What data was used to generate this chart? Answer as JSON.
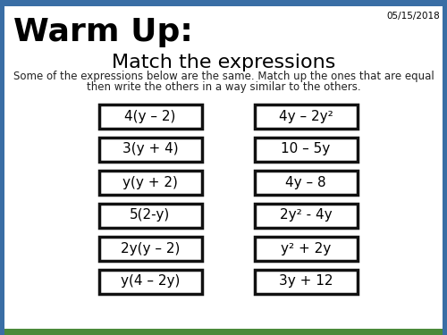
{
  "title": "Warm Up:",
  "subtitle": "Match the expressions",
  "instruction_line1": "Some of the expressions below are the same. Match up the ones that are equal",
  "instruction_line2": "then write the others in a way similar to the others.",
  "date": "05/15/2018",
  "left_expressions": [
    "4(y – 2)",
    "3(y + 4)",
    "y(y + 2)",
    "5(2-y)",
    "2y(y – 2)",
    "y(4 – 2y)"
  ],
  "right_expressions": [
    "4y – 2y²",
    "10 – 5y",
    "4y – 8",
    "2y² - 4y",
    "y² + 2y",
    "3y + 12"
  ],
  "bg_color": "#ffffff",
  "border_top_color": "#3a6ea5",
  "border_bottom_color": "#4a8a3a",
  "box_border_color": "#111111",
  "title_fontsize": 26,
  "subtitle_fontsize": 16,
  "instruction_fontsize": 8.5,
  "date_fontsize": 7.5,
  "expr_fontsize": 11,
  "fig_width": 5.0,
  "fig_height": 3.75,
  "dpi": 100
}
